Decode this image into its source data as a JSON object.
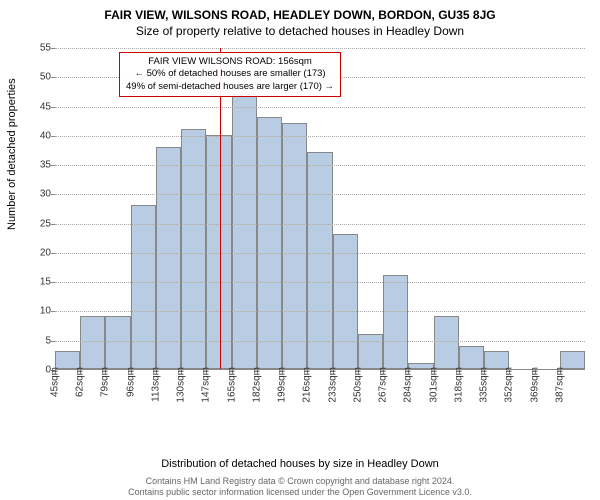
{
  "titles": {
    "line1": "FAIR VIEW, WILSONS ROAD, HEADLEY DOWN, BORDON, GU35 8JG",
    "line2": "Size of property relative to detached houses in Headley Down"
  },
  "ylabel": "Number of detached properties",
  "xlabel": "Distribution of detached houses by size in Headley Down",
  "footer": {
    "line1": "Contains HM Land Registry data © Crown copyright and database right 2024.",
    "line2": "Contains public sector information licensed under the Open Government Licence v3.0."
  },
  "chart": {
    "type": "histogram",
    "bar_fill": "#b8cce4",
    "bar_border": "#888888",
    "grid_color": "#aaaaaa",
    "background": "#ffffff",
    "yaxis": {
      "min": 0,
      "max": 55,
      "step": 5
    },
    "xaxis": {
      "min": 45,
      "bin_width": 17,
      "labels": [
        "45sqm",
        "62sqm",
        "79sqm",
        "96sqm",
        "113sqm",
        "130sqm",
        "147sqm",
        "165sqm",
        "182sqm",
        "199sqm",
        "216sqm",
        "233sqm",
        "250sqm",
        "267sqm",
        "284sqm",
        "301sqm",
        "318sqm",
        "335sqm",
        "352sqm",
        "369sqm",
        "387sqm"
      ]
    },
    "bars": [
      3,
      9,
      9,
      28,
      38,
      41,
      40,
      47,
      43,
      42,
      37,
      23,
      6,
      16,
      1,
      9,
      4,
      3,
      0,
      0,
      3
    ],
    "marker": {
      "value": 156,
      "line_color": "#cc0000",
      "box_border": "#cc0000",
      "lines": [
        "FAIR VIEW WILSONS ROAD: 156sqm",
        "← 50% of detached houses are smaller (173)",
        "49% of semi-detached houses are larger (170) →"
      ]
    }
  }
}
